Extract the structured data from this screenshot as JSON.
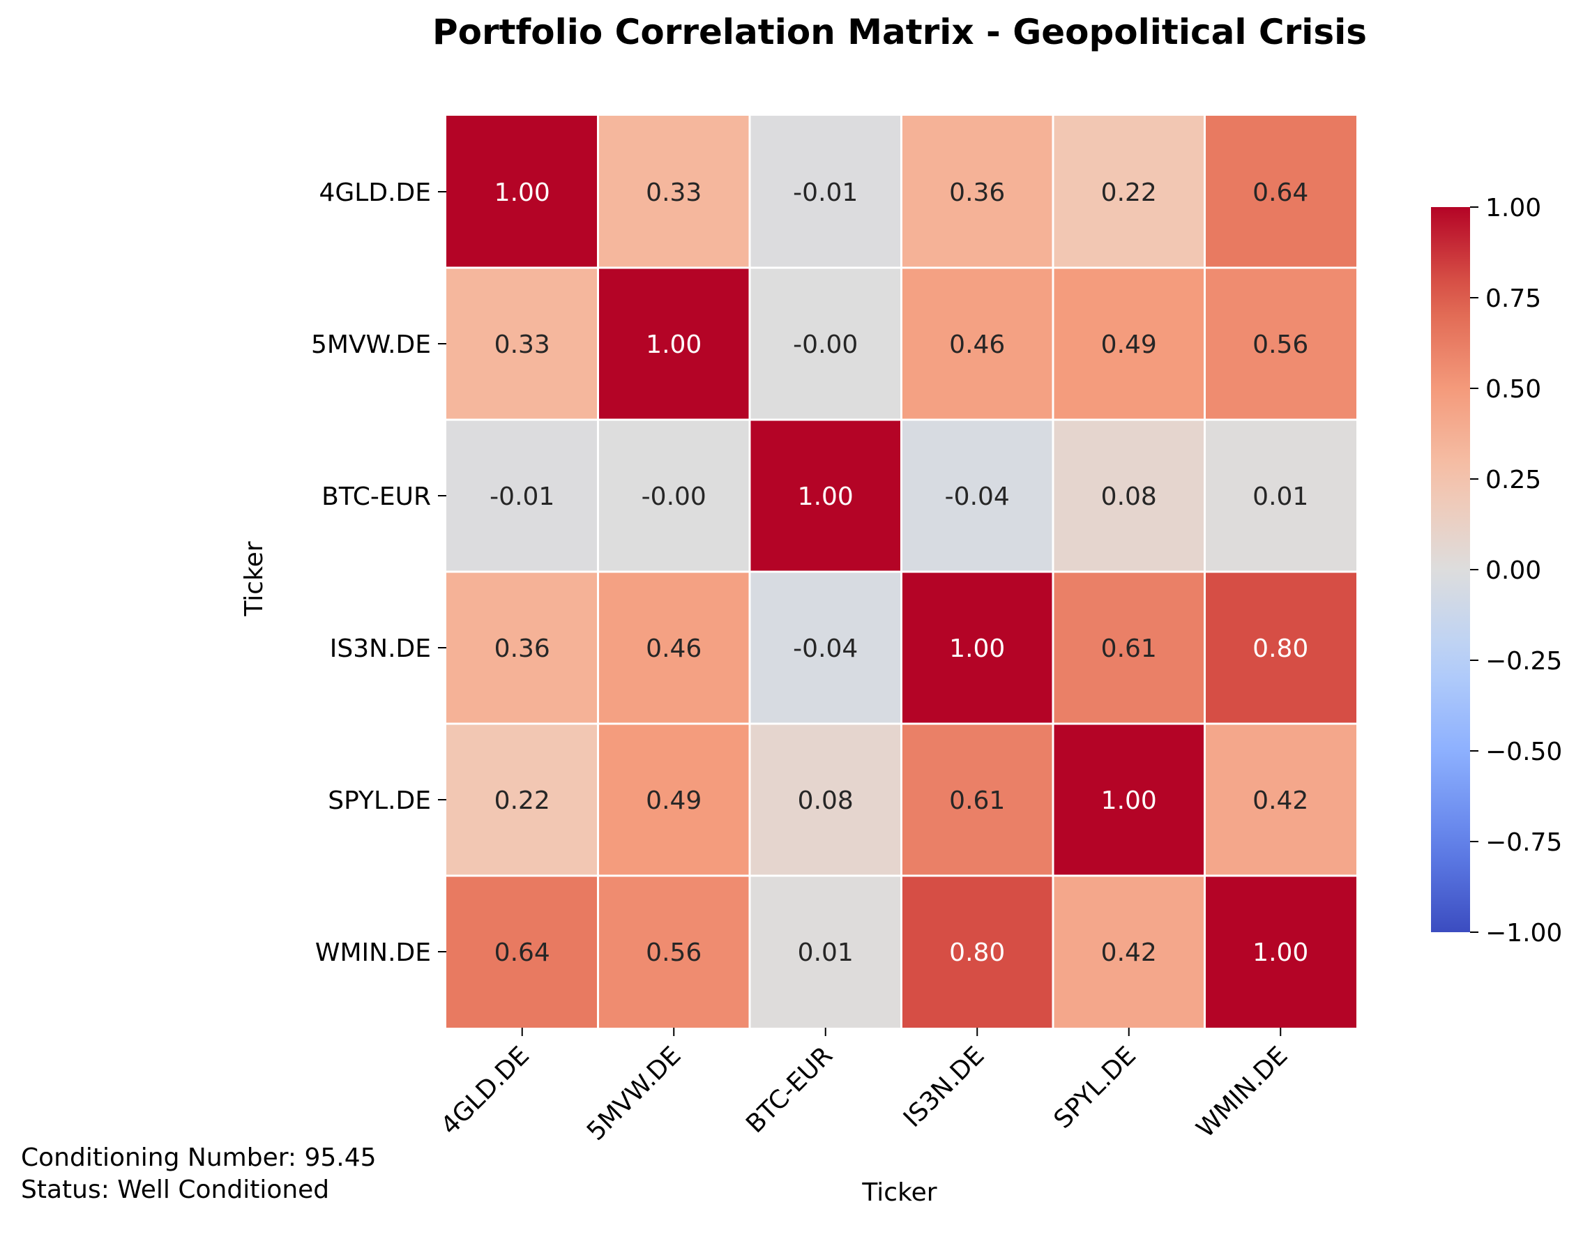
{
  "chart_data": {
    "type": "heatmap",
    "title": "Portfolio Correlation Matrix - Geopolitical Crisis",
    "xlabel": "Ticker",
    "ylabel": "Ticker",
    "x_categories": [
      "4GLD.DE",
      "5MVW.DE",
      "BTC-EUR",
      "IS3N.DE",
      "SPYL.DE",
      "WMIN.DE"
    ],
    "y_categories": [
      "4GLD.DE",
      "5MVW.DE",
      "BTC-EUR",
      "IS3N.DE",
      "SPYL.DE",
      "WMIN.DE"
    ],
    "values": [
      [
        1.0,
        0.33,
        -0.01,
        0.36,
        0.22,
        0.64
      ],
      [
        0.33,
        1.0,
        -0.0,
        0.46,
        0.49,
        0.56
      ],
      [
        -0.01,
        -0.0,
        1.0,
        -0.04,
        0.08,
        0.01
      ],
      [
        0.36,
        0.46,
        -0.04,
        1.0,
        0.61,
        0.8
      ],
      [
        0.22,
        0.49,
        0.08,
        0.61,
        1.0,
        0.42
      ],
      [
        0.64,
        0.56,
        0.01,
        0.8,
        0.42,
        1.0
      ]
    ],
    "cell_labels": [
      [
        "1.00",
        "0.33",
        "-0.01",
        "0.36",
        "0.22",
        "0.64"
      ],
      [
        "0.33",
        "1.00",
        "-0.00",
        "0.46",
        "0.49",
        "0.56"
      ],
      [
        "-0.01",
        "-0.00",
        "1.00",
        "-0.04",
        "0.08",
        "0.01"
      ],
      [
        "0.36",
        "0.46",
        "-0.04",
        "1.00",
        "0.61",
        "0.80"
      ],
      [
        "0.22",
        "0.49",
        "0.08",
        "0.61",
        "1.00",
        "0.42"
      ],
      [
        "0.64",
        "0.56",
        "0.01",
        "0.80",
        "0.42",
        "1.00"
      ]
    ],
    "colormap": "coolwarm",
    "colorbar": {
      "range": [
        -1.0,
        1.0
      ],
      "ticks": [
        1.0,
        0.75,
        0.5,
        0.25,
        0.0,
        -0.25,
        -0.5,
        -0.75,
        -1.0
      ],
      "tick_labels": [
        "1.00",
        "0.75",
        "0.50",
        "0.25",
        "0.00",
        "−0.25",
        "−0.50",
        "−0.75",
        "−1.00"
      ]
    },
    "colors": {
      "neg_end": "#3b4cc0",
      "neutral": "#dddddd",
      "pos_end": "#b40426",
      "grid": "#ffffff",
      "text_dark": "#262626",
      "text_light": "#ffffff"
    }
  },
  "footer": {
    "line1": "Conditioning Number: 95.45",
    "line2": "Status: Well Conditioned"
  }
}
